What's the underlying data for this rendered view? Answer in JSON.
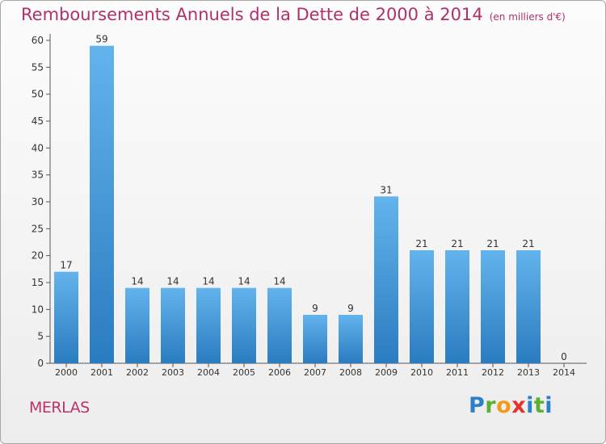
{
  "title": "Remboursements Annuels de la Dette de 2000 à 2014",
  "unit": "(en milliers d'€)",
  "commune": "MERLAS",
  "brand": "Proxiti",
  "colors": {
    "bar_top": "#63b3ec",
    "bar_bottom": "#2a7cc0",
    "title": "#b0306b",
    "axis": "#555555"
  },
  "chart_data": {
    "type": "bar",
    "title": "Remboursements Annuels de la Dette de 2000 à 2014",
    "subtitle": "(en milliers d'€)",
    "categories": [
      "2000",
      "2001",
      "2002",
      "2003",
      "2004",
      "2005",
      "2006",
      "2007",
      "2008",
      "2009",
      "2010",
      "2011",
      "2012",
      "2013",
      "2014"
    ],
    "values": [
      17,
      59,
      14,
      14,
      14,
      14,
      14,
      9,
      9,
      31,
      21,
      21,
      21,
      21,
      0
    ],
    "ylim": [
      0,
      60
    ],
    "yticks": [
      0,
      5,
      10,
      15,
      20,
      25,
      30,
      35,
      40,
      45,
      50,
      55,
      60
    ],
    "grid": false,
    "data_labels": true
  }
}
